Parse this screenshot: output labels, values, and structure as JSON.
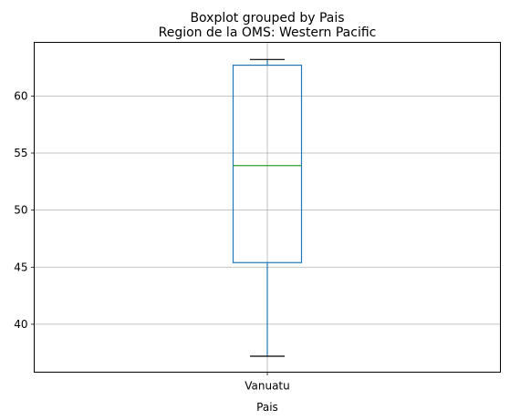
{
  "chart_data": {
    "type": "boxplot",
    "suptitle": "Boxplot grouped by Pais",
    "title": "Region de la OMS: Western Pacific",
    "xlabel": "Pais",
    "ylabel": "",
    "categories": [
      "Vanuatu"
    ],
    "boxes": [
      {
        "category": "Vanuatu",
        "whisker_low": 37.2,
        "q1": 45.4,
        "median": 53.9,
        "q3": 62.7,
        "whisker_high": 63.2
      }
    ],
    "ylim": [
      35.8,
      64.7
    ],
    "yticks": [
      40,
      45,
      50,
      55,
      60
    ],
    "grid": true,
    "colors": {
      "box": "#1f77b4",
      "median": "#2ca02c",
      "whisker_cap": "#000000",
      "grid": "#b0b0b0"
    }
  }
}
